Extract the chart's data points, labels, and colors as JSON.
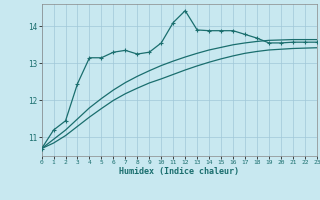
{
  "xlabel": "Humidex (Indice chaleur)",
  "background_color": "#c8e8f0",
  "grid_color": "#a0c8d8",
  "line_color": "#1a6e6e",
  "xlim": [
    0,
    23
  ],
  "ylim": [
    10.5,
    14.6
  ],
  "yticks": [
    11,
    12,
    13,
    14
  ],
  "xticks": [
    0,
    1,
    2,
    3,
    4,
    5,
    6,
    7,
    8,
    9,
    10,
    11,
    12,
    13,
    14,
    15,
    16,
    17,
    18,
    19,
    20,
    21,
    22,
    23
  ],
  "series_main": [
    10.7,
    11.2,
    11.45,
    12.45,
    13.15,
    13.15,
    13.3,
    13.35,
    13.25,
    13.3,
    13.55,
    14.1,
    14.42,
    13.9,
    13.88,
    13.88,
    13.88,
    13.78,
    13.68,
    13.55,
    13.55,
    13.57,
    13.57,
    13.57
  ],
  "series_trend1": [
    10.7,
    10.85,
    11.05,
    11.3,
    11.55,
    11.78,
    12.0,
    12.18,
    12.33,
    12.47,
    12.58,
    12.7,
    12.82,
    12.93,
    13.03,
    13.12,
    13.2,
    13.27,
    13.32,
    13.36,
    13.38,
    13.4,
    13.41,
    13.42
  ],
  "series_trend2": [
    10.7,
    10.95,
    11.2,
    11.5,
    11.8,
    12.05,
    12.28,
    12.48,
    12.65,
    12.8,
    12.94,
    13.06,
    13.17,
    13.27,
    13.36,
    13.43,
    13.5,
    13.55,
    13.59,
    13.62,
    13.63,
    13.64,
    13.64,
    13.64
  ]
}
